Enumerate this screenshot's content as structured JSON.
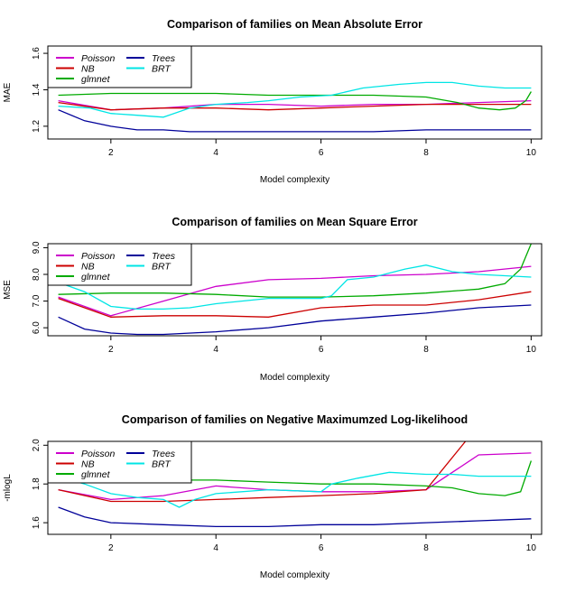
{
  "chart_data": [
    {
      "type": "line",
      "title": "Comparison of families on Mean Absolute Error",
      "xlabel": "Model complexity",
      "ylabel": "MAE",
      "xlim": [
        0.8,
        10.2
      ],
      "ylim": [
        1.13,
        1.64
      ],
      "xticks": [
        "2",
        "4",
        "6",
        "8",
        "10"
      ],
      "yticks": [
        "1.2",
        "1.4",
        "1.6"
      ],
      "legend_position": "top-left",
      "series": [
        {
          "name": "Poisson",
          "color": "#cc00cc",
          "points": [
            [
              1,
              1.34
            ],
            [
              2,
              1.29
            ],
            [
              3,
              1.3
            ],
            [
              4,
              1.32
            ],
            [
              5,
              1.32
            ],
            [
              6,
              1.31
            ],
            [
              7,
              1.32
            ],
            [
              8,
              1.32
            ],
            [
              9,
              1.33
            ],
            [
              10,
              1.34
            ]
          ]
        },
        {
          "name": "NB",
          "color": "#cc0000",
          "points": [
            [
              1,
              1.33
            ],
            [
              2,
              1.29
            ],
            [
              3,
              1.3
            ],
            [
              4,
              1.3
            ],
            [
              5,
              1.29
            ],
            [
              6,
              1.3
            ],
            [
              7,
              1.31
            ],
            [
              8,
              1.32
            ],
            [
              9,
              1.32
            ],
            [
              10,
              1.32
            ]
          ]
        },
        {
          "name": "glmnet",
          "color": "#00aa00",
          "points": [
            [
              1,
              1.37
            ],
            [
              2,
              1.38
            ],
            [
              3,
              1.38
            ],
            [
              4,
              1.38
            ],
            [
              5,
              1.37
            ],
            [
              6,
              1.37
            ],
            [
              7,
              1.37
            ],
            [
              8,
              1.36
            ],
            [
              8.6,
              1.33
            ],
            [
              9,
              1.3
            ],
            [
              9.4,
              1.29
            ],
            [
              9.7,
              1.3
            ],
            [
              9.9,
              1.34
            ],
            [
              10,
              1.39
            ]
          ]
        },
        {
          "name": "Trees",
          "color": "#000099",
          "points": [
            [
              1,
              1.29
            ],
            [
              1.5,
              1.23
            ],
            [
              2,
              1.2
            ],
            [
              2.5,
              1.18
            ],
            [
              3,
              1.18
            ],
            [
              3.5,
              1.17
            ],
            [
              4,
              1.17
            ],
            [
              5,
              1.17
            ],
            [
              6,
              1.17
            ],
            [
              7,
              1.17
            ],
            [
              8,
              1.18
            ],
            [
              9,
              1.18
            ],
            [
              10,
              1.18
            ]
          ]
        },
        {
          "name": "BRT",
          "color": "#00e5e5",
          "points": [
            [
              1,
              1.31
            ],
            [
              1.6,
              1.3
            ],
            [
              2,
              1.27
            ],
            [
              2.5,
              1.26
            ],
            [
              3,
              1.25
            ],
            [
              3.5,
              1.3
            ],
            [
              4,
              1.32
            ],
            [
              4.6,
              1.33
            ],
            [
              5,
              1.34
            ],
            [
              5.6,
              1.36
            ],
            [
              6.2,
              1.37
            ],
            [
              6.8,
              1.41
            ],
            [
              7.5,
              1.43
            ],
            [
              8,
              1.44
            ],
            [
              8.5,
              1.44
            ],
            [
              9,
              1.42
            ],
            [
              9.5,
              1.41
            ],
            [
              10,
              1.41
            ]
          ]
        }
      ]
    },
    {
      "type": "line",
      "title": "Comparison of families on Mean Square Error",
      "xlabel": "Model complexity",
      "ylabel": "MSE",
      "xlim": [
        0.8,
        10.2
      ],
      "ylim": [
        5.7,
        9.15
      ],
      "xticks": [
        "2",
        "4",
        "6",
        "8",
        "10"
      ],
      "yticks": [
        "6.0",
        "7.0",
        "8.0",
        "9.0"
      ],
      "legend_position": "top-left",
      "series": [
        {
          "name": "Poisson",
          "color": "#cc00cc",
          "points": [
            [
              1,
              7.15
            ],
            [
              2,
              6.45
            ],
            [
              3,
              7.0
            ],
            [
              4,
              7.55
            ],
            [
              5,
              7.8
            ],
            [
              6,
              7.85
            ],
            [
              7,
              7.95
            ],
            [
              8,
              8.0
            ],
            [
              9,
              8.1
            ],
            [
              10,
              8.3
            ]
          ]
        },
        {
          "name": "NB",
          "color": "#cc0000",
          "points": [
            [
              1,
              7.1
            ],
            [
              2,
              6.4
            ],
            [
              3,
              6.45
            ],
            [
              4,
              6.45
            ],
            [
              5,
              6.4
            ],
            [
              6,
              6.75
            ],
            [
              7,
              6.85
            ],
            [
              8,
              6.85
            ],
            [
              9,
              7.05
            ],
            [
              10,
              7.35
            ]
          ]
        },
        {
          "name": "glmnet",
          "color": "#00aa00",
          "points": [
            [
              1,
              7.25
            ],
            [
              2,
              7.3
            ],
            [
              3,
              7.3
            ],
            [
              4,
              7.25
            ],
            [
              5,
              7.15
            ],
            [
              6,
              7.15
            ],
            [
              7,
              7.2
            ],
            [
              8,
              7.3
            ],
            [
              9,
              7.45
            ],
            [
              9.5,
              7.65
            ],
            [
              9.8,
              8.2
            ],
            [
              10,
              9.15
            ]
          ]
        },
        {
          "name": "Trees",
          "color": "#000099",
          "points": [
            [
              1,
              6.4
            ],
            [
              1.5,
              5.95
            ],
            [
              2,
              5.8
            ],
            [
              2.5,
              5.75
            ],
            [
              3,
              5.75
            ],
            [
              4,
              5.85
            ],
            [
              5,
              6.0
            ],
            [
              6,
              6.25
            ],
            [
              7,
              6.4
            ],
            [
              8,
              6.55
            ],
            [
              9,
              6.75
            ],
            [
              10,
              6.85
            ]
          ]
        },
        {
          "name": "BRT",
          "color": "#00e5e5",
          "points": [
            [
              1,
              7.7
            ],
            [
              1.5,
              7.35
            ],
            [
              2,
              6.8
            ],
            [
              2.5,
              6.7
            ],
            [
              3,
              6.7
            ],
            [
              3.5,
              6.75
            ],
            [
              4,
              6.9
            ],
            [
              5,
              7.1
            ],
            [
              6,
              7.1
            ],
            [
              6.2,
              7.2
            ],
            [
              6.5,
              7.8
            ],
            [
              7,
              7.9
            ],
            [
              7.6,
              8.2
            ],
            [
              8,
              8.35
            ],
            [
              8.5,
              8.1
            ],
            [
              9,
              8.0
            ],
            [
              9.5,
              7.95
            ],
            [
              10,
              7.9
            ]
          ]
        }
      ]
    },
    {
      "type": "line",
      "title": "Comparison of families on Negative Maximumzed Log-likelihood",
      "xlabel": "Model complexity",
      "ylabel": "-mlogL",
      "xlim": [
        0.8,
        10.2
      ],
      "ylim": [
        1.54,
        2.02
      ],
      "xticks": [
        "2",
        "4",
        "6",
        "8",
        "10"
      ],
      "yticks": [
        "1.6",
        "1.8",
        "2.0"
      ],
      "legend_position": "top-left",
      "series": [
        {
          "name": "Poisson",
          "color": "#cc00cc",
          "points": [
            [
              1,
              1.77
            ],
            [
              2,
              1.72
            ],
            [
              3,
              1.74
            ],
            [
              4,
              1.79
            ],
            [
              5,
              1.77
            ],
            [
              6,
              1.76
            ],
            [
              7,
              1.76
            ],
            [
              8,
              1.77
            ],
            [
              9,
              1.95
            ],
            [
              10,
              1.96
            ]
          ]
        },
        {
          "name": "NB",
          "color": "#cc0000",
          "points": [
            [
              1,
              1.77
            ],
            [
              2,
              1.71
            ],
            [
              3,
              1.71
            ],
            [
              4,
              1.72
            ],
            [
              5,
              1.73
            ],
            [
              6,
              1.74
            ],
            [
              7,
              1.75
            ],
            [
              8,
              1.77
            ],
            [
              8.75,
              2.02
            ]
          ]
        },
        {
          "name": "glmnet",
          "color": "#00aa00",
          "points": [
            [
              1,
              1.81
            ],
            [
              2,
              1.81
            ],
            [
              3,
              1.82
            ],
            [
              4,
              1.82
            ],
            [
              5,
              1.81
            ],
            [
              6,
              1.8
            ],
            [
              7,
              1.8
            ],
            [
              8,
              1.79
            ],
            [
              8.5,
              1.78
            ],
            [
              9,
              1.75
            ],
            [
              9.5,
              1.74
            ],
            [
              9.8,
              1.76
            ],
            [
              10,
              1.92
            ]
          ]
        },
        {
          "name": "Trees",
          "color": "#000099",
          "points": [
            [
              1,
              1.68
            ],
            [
              1.5,
              1.63
            ],
            [
              2,
              1.6
            ],
            [
              3,
              1.59
            ],
            [
              4,
              1.58
            ],
            [
              5,
              1.58
            ],
            [
              6,
              1.59
            ],
            [
              7,
              1.59
            ],
            [
              8,
              1.6
            ],
            [
              9,
              1.61
            ],
            [
              10,
              1.62
            ]
          ]
        },
        {
          "name": "BRT",
          "color": "#00e5e5",
          "points": [
            [
              1,
              1.84
            ],
            [
              1.5,
              1.8
            ],
            [
              2,
              1.75
            ],
            [
              2.5,
              1.73
            ],
            [
              3,
              1.72
            ],
            [
              3.3,
              1.68
            ],
            [
              3.6,
              1.72
            ],
            [
              4,
              1.75
            ],
            [
              5,
              1.77
            ],
            [
              6,
              1.76
            ],
            [
              6.2,
              1.8
            ],
            [
              6.7,
              1.83
            ],
            [
              7.3,
              1.86
            ],
            [
              8,
              1.85
            ],
            [
              8.5,
              1.85
            ],
            [
              9,
              1.84
            ],
            [
              9.5,
              1.84
            ],
            [
              10,
              1.84
            ]
          ]
        }
      ]
    }
  ]
}
